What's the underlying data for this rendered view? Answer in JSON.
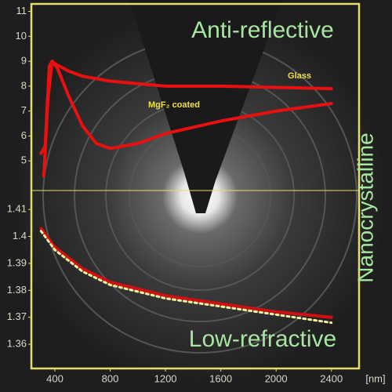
{
  "chart_data": [
    {
      "type": "line",
      "annotations": [
        "Anti-reflective",
        "Nanocrystalline"
      ],
      "xlim": [
        230,
        2600
      ],
      "ylim": [
        4,
        11.3
      ],
      "yticks": [
        5,
        6,
        7,
        8,
        9,
        10,
        11
      ],
      "series": [
        {
          "name": "Glass",
          "color": "#e81010",
          "x": [
            300,
            330,
            360,
            380,
            400,
            500,
            600,
            800,
            1000,
            1200,
            1600,
            2000,
            2400
          ],
          "values": [
            5.3,
            5.6,
            8.8,
            9.0,
            8.9,
            8.6,
            8.4,
            8.2,
            8.1,
            8.0,
            8.0,
            7.95,
            7.9
          ]
        },
        {
          "name": "MgF₂ coated",
          "color": "#e81010",
          "x": [
            320,
            350,
            380,
            420,
            500,
            600,
            700,
            800,
            1000,
            1200,
            1600,
            2000,
            2400
          ],
          "values": [
            4.4,
            7.5,
            9.0,
            8.7,
            7.6,
            6.4,
            5.7,
            5.5,
            5.7,
            6.1,
            6.6,
            7.0,
            7.3
          ]
        }
      ]
    },
    {
      "type": "line",
      "annotations": [
        "Low-refractive"
      ],
      "xlabel": "[nm]",
      "xlim": [
        230,
        2600
      ],
      "xticks": [
        400,
        800,
        1200,
        1600,
        2000,
        2400
      ],
      "ylim": [
        1.351,
        1.415
      ],
      "yticks": [
        1.36,
        1.37,
        1.38,
        1.39,
        1.4,
        {
          "value": 1.41,
          "label": "1.41"
        }
      ],
      "series": [
        {
          "color": "#d01010",
          "x": [
            300,
            400,
            600,
            800,
            1200,
            1600,
            2000,
            2400
          ],
          "values": [
            1.403,
            1.396,
            1.388,
            1.383,
            1.378,
            1.375,
            1.372,
            1.37
          ]
        },
        {
          "color": "#f4f0a0",
          "dashed": true,
          "x": [
            300,
            400,
            600,
            800,
            1200,
            1600,
            2000,
            2400
          ],
          "values": [
            1.402,
            1.395,
            1.387,
            1.382,
            1.377,
            1.374,
            1.371,
            1.368
          ]
        }
      ]
    }
  ]
}
